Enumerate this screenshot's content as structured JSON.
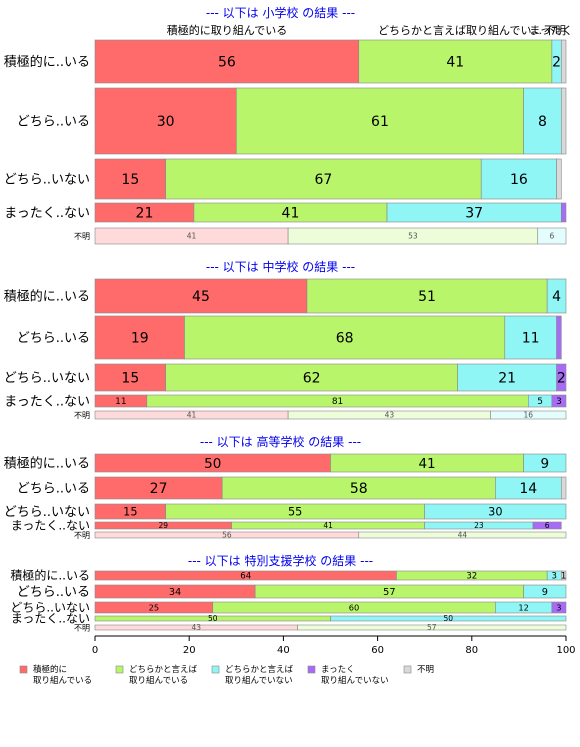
{
  "chart_data": {
    "type": "bar",
    "orientation": "horizontal",
    "stacked": true,
    "xlim": [
      0,
      100
    ],
    "x_ticks": [
      0,
      20,
      40,
      60,
      80,
      100
    ],
    "top_header_labels": [
      "積極的に取り組んでいる",
      "どちらかと言えば取り組んでい...",
      "まったく",
      "不明"
    ],
    "series": [
      {
        "key": "s1",
        "color": "#ff6b6b",
        "legend": [
          "積極的に",
          "取り組んでいる"
        ]
      },
      {
        "key": "s2",
        "color": "#b8f56b",
        "legend": [
          "どちらかと言えば",
          "取り組んでいる"
        ]
      },
      {
        "key": "s3",
        "color": "#8ff5f5",
        "legend": [
          "どちらかと言えば",
          "取り組んでいない"
        ]
      },
      {
        "key": "s4",
        "color": "#a86bf5",
        "legend": [
          "まったく",
          "取り組んでいない"
        ]
      },
      {
        "key": "s5",
        "color": "#d9d9d9",
        "legend": [
          "不明"
        ]
      }
    ],
    "panels": [
      {
        "title": "--- 以下は 小学校 の結果 ---",
        "rows": [
          {
            "label": "積極的に..いる",
            "values": [
              56,
              41,
              2,
              0,
              1
            ]
          },
          {
            "label": "どちら..いる",
            "values": [
              30,
              61,
              8,
              0,
              1
            ]
          },
          {
            "label": "どちら..いない",
            "values": [
              15,
              67,
              16,
              0,
              1
            ]
          },
          {
            "label": "まったく..ない",
            "values": [
              21,
              41,
              37,
              1,
              0
            ]
          },
          {
            "label": "不明",
            "values": [
              41,
              53,
              6,
              0,
              0
            ],
            "faded": true
          }
        ]
      },
      {
        "title": "--- 以下は 中学校 の結果 ---",
        "rows": [
          {
            "label": "積極的に..いる",
            "values": [
              45,
              51,
              4,
              0,
              0
            ]
          },
          {
            "label": "どちら..いる",
            "values": [
              19,
              68,
              11,
              1,
              0
            ]
          },
          {
            "label": "どちら..いない",
            "values": [
              15,
              62,
              21,
              2,
              0
            ]
          },
          {
            "label": "まったく..ない",
            "values": [
              11,
              81,
              5,
              3,
              0
            ]
          },
          {
            "label": "不明",
            "values": [
              41,
              43,
              16,
              0,
              0
            ],
            "faded": true
          }
        ]
      },
      {
        "title": "--- 以下は 高等学校 の結果 ---",
        "rows": [
          {
            "label": "積極的に..いる",
            "values": [
              50,
              41,
              9,
              0,
              0
            ]
          },
          {
            "label": "どちら..いる",
            "values": [
              27,
              58,
              14,
              0,
              1
            ]
          },
          {
            "label": "どちら..いない",
            "values": [
              15,
              55,
              30,
              0,
              0
            ]
          },
          {
            "label": "まったく..ない",
            "values": [
              29,
              41,
              23,
              6,
              0
            ]
          },
          {
            "label": "不明",
            "values": [
              56,
              44,
              0,
              0,
              0
            ],
            "faded": true
          }
        ]
      },
      {
        "title": "--- 以下は 特別支援学校 の結果 ---",
        "rows": [
          {
            "label": "積極的に..いる",
            "values": [
              64,
              32,
              3,
              0,
              1
            ]
          },
          {
            "label": "どちら..いる",
            "values": [
              34,
              57,
              9,
              0,
              0
            ]
          },
          {
            "label": "どちら..いない",
            "values": [
              25,
              60,
              12,
              3,
              0
            ]
          },
          {
            "label": "まったく..ない",
            "values": [
              0,
              50,
              50,
              0,
              0
            ]
          },
          {
            "label": "不明",
            "values": [
              43,
              57,
              0,
              0,
              0
            ],
            "faded": true
          }
        ]
      }
    ]
  }
}
